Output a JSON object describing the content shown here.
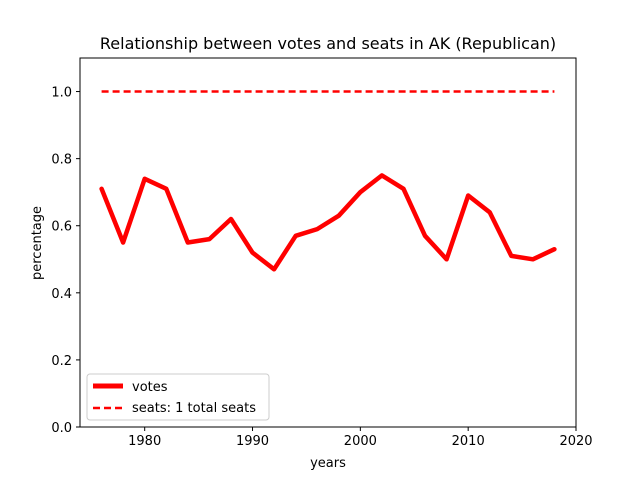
{
  "chart_data": {
    "type": "line",
    "title": "Relationship between votes and seats in AK (Republican)",
    "xlabel": "years",
    "ylabel": "percentage",
    "xlim": [
      1974,
      2020
    ],
    "ylim": [
      0.0,
      1.1
    ],
    "xticks": [
      1980,
      1990,
      2000,
      2010,
      2020
    ],
    "yticks": [
      0.0,
      0.2,
      0.4,
      0.6,
      0.8,
      1.0
    ],
    "xtick_labels": [
      "1980",
      "1990",
      "2000",
      "2010",
      "2020"
    ],
    "ytick_labels": [
      "0.0",
      "0.2",
      "0.4",
      "0.6",
      "0.8",
      "1.0"
    ],
    "legend_position": "lower-left",
    "series": [
      {
        "name": "votes",
        "style": "solid",
        "color": "#ff0000",
        "x": [
          1976,
          1978,
          1980,
          1982,
          1984,
          1986,
          1988,
          1990,
          1992,
          1994,
          1996,
          1998,
          2000,
          2002,
          2004,
          2006,
          2008,
          2010,
          2012,
          2014,
          2016,
          2018
        ],
        "y": [
          0.71,
          0.55,
          0.74,
          0.71,
          0.55,
          0.56,
          0.62,
          0.52,
          0.47,
          0.57,
          0.59,
          0.63,
          0.7,
          0.75,
          0.71,
          0.57,
          0.5,
          0.69,
          0.64,
          0.51,
          0.5,
          0.53
        ]
      },
      {
        "name": "seats: 1 total seats",
        "style": "dashed",
        "color": "#ff0000",
        "x": [
          1976,
          2018
        ],
        "y": [
          1.0,
          1.0
        ]
      }
    ]
  }
}
